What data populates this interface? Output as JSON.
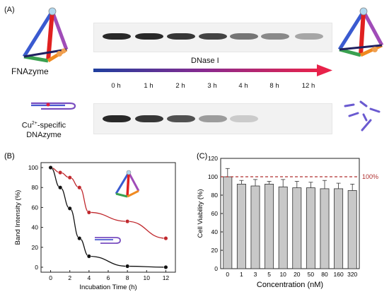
{
  "panel_a": {
    "label": "(A)",
    "top_name": "FNAzyme",
    "enzyme": "DNase I",
    "bottom_name_line1": "Cu",
    "bottom_name_sup": "2+",
    "bottom_name_rest": "-specific",
    "bottom_name_line2": "DNAzyme",
    "times": [
      "0 h",
      "1 h",
      "2 h",
      "3 h",
      "4 h",
      "8 h",
      "12 h"
    ],
    "top_band_intensity": [
      1.0,
      1.0,
      0.95,
      0.9,
      0.7,
      0.6,
      0.45
    ],
    "bottom_band_intensity": [
      1.0,
      0.95,
      0.85,
      0.5,
      0.2,
      0.0,
      0.0
    ],
    "colors": {
      "arrow_start": "#1f3f9e",
      "arrow_mid": "#8a2a8f",
      "arrow_end": "#e8224a"
    }
  },
  "chart_data": [
    {
      "panel": "(B)",
      "type": "line",
      "xlabel": "Incubation Time (h)",
      "ylabel": "Band Intensity (%)",
      "xlim": [
        -1,
        13
      ],
      "ylim": [
        -5,
        105
      ],
      "xticks": [
        0,
        2,
        4,
        6,
        8,
        10,
        12
      ],
      "yticks": [
        0,
        20,
        40,
        60,
        80,
        100
      ],
      "grid": false,
      "series": [
        {
          "color": "#c0282d",
          "x": [
            0,
            1,
            2,
            3,
            4,
            8,
            12
          ],
          "y": [
            100,
            95,
            90,
            80,
            55,
            46,
            29
          ]
        },
        {
          "color": "#111111",
          "x": [
            0,
            1,
            2,
            3,
            4,
            8,
            12
          ],
          "y": [
            100,
            80,
            59,
            29,
            11,
            1,
            0
          ]
        }
      ]
    },
    {
      "panel": "(C)",
      "type": "bar",
      "xlabel": "Concentration (nM)",
      "ylabel": "Cell Viability (%)",
      "categories": [
        "0",
        "1",
        "3",
        "5",
        "10",
        "20",
        "50",
        "80",
        "160",
        "320"
      ],
      "values": [
        100,
        92,
        90,
        92,
        89,
        88,
        88,
        87,
        87,
        85
      ],
      "errors": [
        9,
        4,
        7,
        3,
        8,
        7,
        6,
        9,
        6,
        7
      ],
      "ylim": [
        0,
        120
      ],
      "yticks": [
        0,
        20,
        40,
        60,
        80,
        100,
        120
      ],
      "reference_line": {
        "y": 100,
        "label": "100%",
        "color": "#b03030"
      },
      "bar_color": "#c8c8c8",
      "grid": false
    }
  ]
}
